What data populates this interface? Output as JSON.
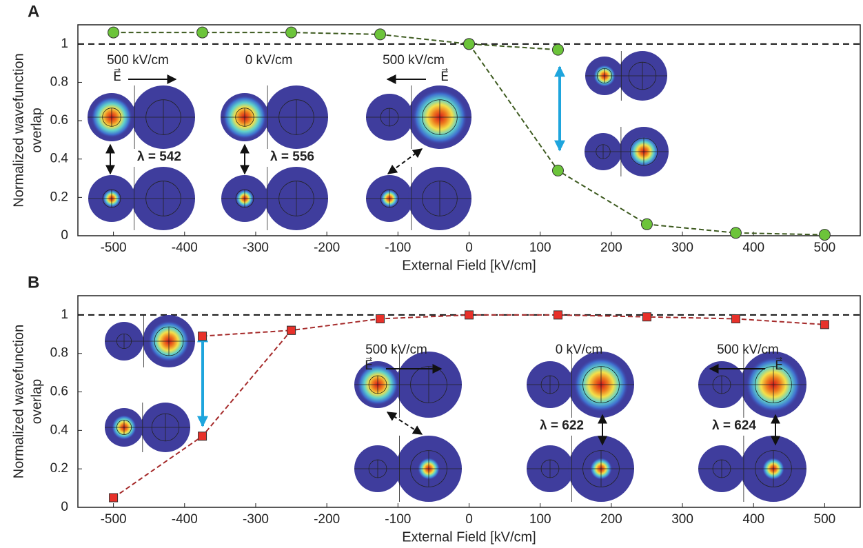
{
  "chart_data": [
    {
      "type": "line",
      "panel_label": "A",
      "xlabel": "External Field [kV/cm]",
      "ylabel": [
        "Normalized wavefunction",
        "overlap"
      ],
      "xlim": [
        -550,
        550
      ],
      "ylim": [
        0,
        1.1
      ],
      "xticks": [
        -500,
        -400,
        -300,
        -200,
        -100,
        0,
        100,
        200,
        300,
        400,
        500
      ],
      "yticks": [
        0,
        0.2,
        0.4,
        0.6,
        0.8,
        1
      ],
      "reference_line": 1,
      "marker": "circle",
      "marker_color": "#6cc43a",
      "line_color": "#3d5a1f",
      "series": [
        {
          "x": [
            -500,
            -375,
            -250,
            -125,
            0,
            125
          ],
          "values": [
            1.06,
            1.06,
            1.06,
            1.05,
            1.0,
            0.97
          ]
        },
        {
          "x": [
            0,
            125,
            250,
            375,
            500
          ],
          "values": [
            1.0,
            0.34,
            0.06,
            0.015,
            0.005
          ]
        }
      ],
      "annotations": [
        {
          "text": "500 kV/cm",
          "color": "#111111"
        },
        {
          "text": "E⃗",
          "color": "#111111"
        },
        {
          "text": "0 kV/cm",
          "color": "#111111"
        },
        {
          "text": "500 kV/cm",
          "color": "#111111"
        },
        {
          "text": "E⃗",
          "color": "#111111"
        },
        {
          "text": "λ = 542",
          "color": "#1f9a3a"
        },
        {
          "text": "λ = 556",
          "color": "#1f9a3a"
        }
      ]
    },
    {
      "type": "line",
      "panel_label": "B",
      "xlabel": "External Field [kV/cm]",
      "ylabel": [
        "Normalized wavefunction",
        "overlap"
      ],
      "xlim": [
        -550,
        550
      ],
      "ylim": [
        0,
        1.1
      ],
      "xticks": [
        -500,
        -400,
        -300,
        -200,
        -100,
        0,
        100,
        200,
        300,
        400,
        500
      ],
      "yticks": [
        0,
        0.2,
        0.4,
        0.6,
        0.8,
        1
      ],
      "reference_line": 1,
      "marker": "square",
      "marker_color": "#e8312a",
      "line_color": "#a52a2a",
      "series": [
        {
          "x": [
            -500,
            -375,
            -250,
            -125,
            0,
            125,
            250,
            375,
            500
          ],
          "values": [
            0.05,
            0.37,
            0.92,
            0.98,
            1.0,
            1.0,
            0.99,
            0.98,
            0.95
          ]
        },
        {
          "x": [
            -375,
            -250
          ],
          "values": [
            0.89,
            0.92
          ]
        }
      ],
      "annotations": [
        {
          "text": "500 kV/cm",
          "color": "#111111"
        },
        {
          "text": "E⃗",
          "color": "#111111"
        },
        {
          "text": "0 kV/cm",
          "color": "#111111"
        },
        {
          "text": "500 kV/cm",
          "color": "#111111"
        },
        {
          "text": "E⃗",
          "color": "#111111"
        },
        {
          "text": "λ = 622",
          "color": "#e8312a"
        },
        {
          "text": "λ = 624",
          "color": "#e8312a"
        }
      ]
    }
  ]
}
